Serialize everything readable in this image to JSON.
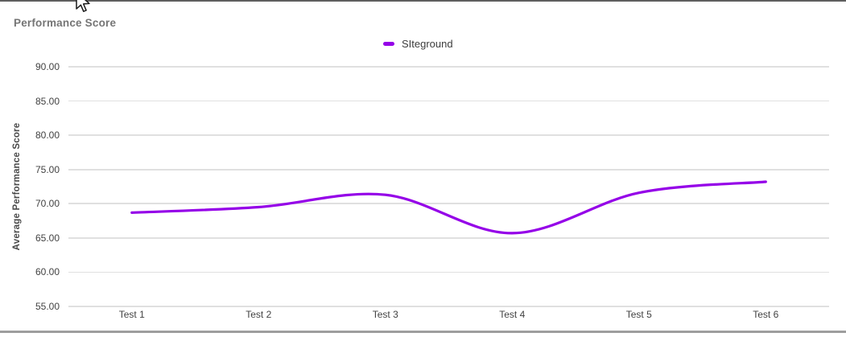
{
  "chart_data": {
    "type": "line",
    "title": "Performance Score",
    "categories": [
      "Test 1",
      "Test 2",
      "Test 3",
      "Test 4",
      "Test 5",
      "Test 6"
    ],
    "series": [
      {
        "name": "SIteground",
        "color": "#9500e8",
        "values": [
          68.7,
          69.5,
          71.3,
          65.7,
          71.6,
          73.2
        ]
      }
    ],
    "xlabel": "",
    "ylabel": "Average Performance Score",
    "ylim": [
      55,
      90
    ],
    "yticks": [
      90,
      85,
      80,
      75,
      70,
      65,
      60,
      55
    ],
    "ytick_labels": [
      "90.00",
      "85.00",
      "80.00",
      "75.00",
      "70.00",
      "65.00",
      "60.00",
      "55.00"
    ],
    "grid": true,
    "legend_position": "top-center",
    "curve": "smooth"
  },
  "colors": {
    "line": "#9500e8",
    "gridline": "#e0e0e0",
    "title_text": "#757575",
    "tick_text": "#424242",
    "axis_title_text": "#4a4a4a",
    "legend_text": "#3c3c3c",
    "top_border": "#5f5f5f",
    "bottom_border": "#9e9e9e"
  }
}
